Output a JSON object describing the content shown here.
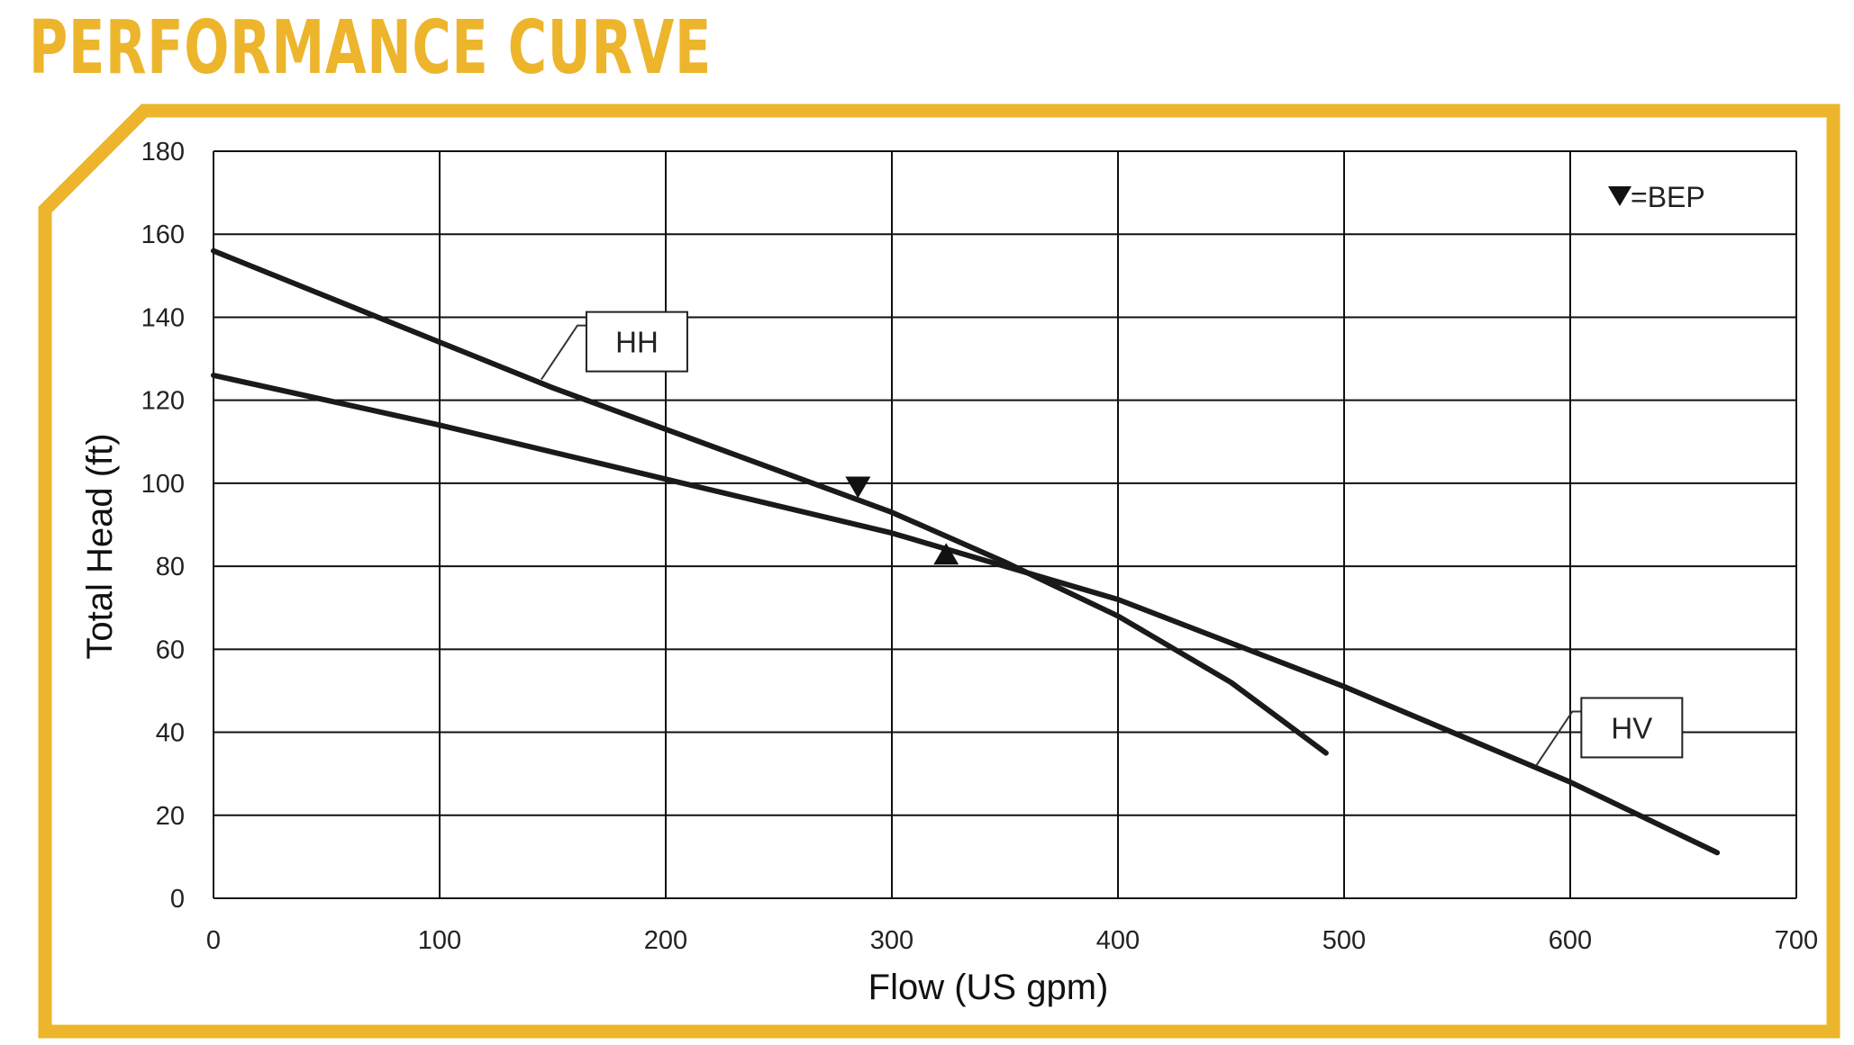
{
  "page": {
    "title": "PERFORMANCE CURVE"
  },
  "colors": {
    "accent": "#ecb52b",
    "line": "#1a1a1a",
    "grid": "#111111"
  },
  "chart_data": {
    "type": "line",
    "xlabel": "Flow (US gpm)",
    "ylabel": "Total Head (ft)",
    "xlim": [
      0,
      700
    ],
    "ylim": [
      0,
      180
    ],
    "xticks": [
      0,
      100,
      200,
      300,
      400,
      500,
      600,
      700
    ],
    "yticks": [
      0,
      20,
      40,
      60,
      80,
      100,
      120,
      140,
      160,
      180
    ],
    "grid": true,
    "legend": {
      "text": "=BEP",
      "marker": "down-triangle",
      "placement": "top-right"
    },
    "series": [
      {
        "name": "HH",
        "x": [
          0,
          50,
          100,
          150,
          200,
          250,
          300,
          350,
          400,
          450,
          492
        ],
        "y": [
          156,
          145,
          134,
          123,
          113,
          103,
          93,
          81,
          68,
          52,
          35
        ]
      },
      {
        "name": "HV",
        "x": [
          0,
          100,
          200,
          300,
          350,
          400,
          500,
          600,
          665
        ],
        "y": [
          126,
          114,
          101,
          88,
          80,
          72,
          51,
          28,
          11
        ]
      }
    ],
    "bep_markers": [
      {
        "series": "HH",
        "x": 285,
        "y": 99,
        "marker": "down-triangle"
      },
      {
        "series": "HV",
        "x": 324,
        "y": 83,
        "marker": "up-triangle"
      }
    ],
    "callouts": [
      {
        "series": "HH",
        "label": "HH",
        "anchor_x": 145,
        "anchor_y": 125
      },
      {
        "series": "HV",
        "label": "HV",
        "anchor_x": 585,
        "anchor_y": 32
      }
    ]
  }
}
